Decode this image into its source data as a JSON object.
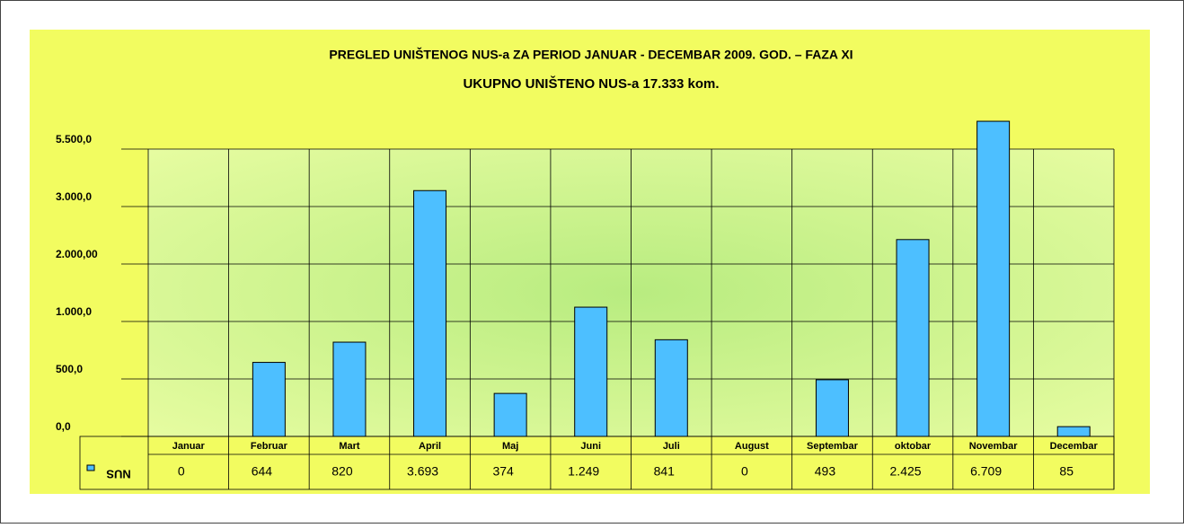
{
  "chart_data": {
    "type": "bar",
    "title": "PREGLED   UNIŠTENOG NUS-a ZA PERIOD JANUAR - DECEMBAR 2009. GOD. – FAZA  XI",
    "subtitle": "UKUPNO UNIŠTENO NUS-a  17.333 kom.",
    "categories": [
      "Januar",
      "Februar",
      "Mart",
      "April",
      "Maj",
      "Juni",
      "Juli",
      "August",
      "Septembar",
      "oktobar",
      "Novembar",
      "Decembar"
    ],
    "series": [
      {
        "name": "NUS",
        "color": "#4dbfff",
        "values": [
          0,
          644,
          820,
          3693,
          374,
          1249,
          841,
          0,
          493,
          2425,
          6709,
          85
        ],
        "value_labels": [
          "0",
          "644",
          "820",
          "3.693",
          "374",
          "1.249",
          "841",
          "0",
          "493",
          "2.425",
          "6.709",
          "85"
        ]
      }
    ],
    "ylim": [
      0,
      5500
    ],
    "yticks": [
      {
        "value": 0,
        "label": "0,0"
      },
      {
        "value": 500,
        "label": "500,0"
      },
      {
        "value": 1000,
        "label": "1.000,0"
      },
      {
        "value": 2000,
        "label": "2.000,00"
      },
      {
        "value": 3000,
        "label": "3.000,0"
      },
      {
        "value": 5500,
        "label": "5.500,0"
      }
    ],
    "grid": true
  }
}
